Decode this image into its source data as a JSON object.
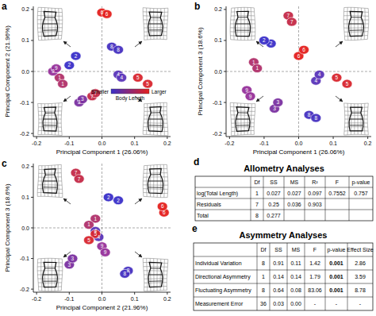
{
  "chart_data": [
    {
      "type": "scatter",
      "title": "a",
      "x_label": "Principal Component 1 (26.06%)",
      "y_label": "Principal Component 2 (21.96%)",
      "xlim": [
        -0.21,
        0.21
      ],
      "ylim": [
        -0.21,
        0.21
      ],
      "xticks": [
        -0.2,
        -0.1,
        {
          "value": 0,
          "label": "0.0"
        },
        0.1,
        0.2
      ],
      "yticks": [
        -0.2,
        -0.1,
        {
          "value": 0,
          "label": "0.0"
        },
        0.1,
        0.2
      ],
      "grid": false,
      "marker": "ellipse",
      "series": [
        {
          "x": [
            -0.13,
            -0.12,
            -0.08,
            -0.1,
            -0.07,
            -0.06,
            0.05,
            0.06,
            0.11,
            0.14,
            0.0,
            0.015,
            -0.03,
            -0.02,
            0.03,
            0.05,
            -0.15,
            -0.14
          ],
          "values": [
            -0.02,
            -0.04,
            0.05,
            0.02,
            -0.1,
            -0.09,
            -0.01,
            -0.02,
            -0.02,
            -0.04,
            0.19,
            0.185,
            -0.08,
            -0.07,
            0.08,
            0.07,
            0.0,
            0.01
          ],
          "labels": [
            "1",
            "1",
            "2",
            "2",
            "3",
            "3",
            "4",
            "4",
            "5",
            "5",
            "6",
            "6",
            "7",
            "7",
            "8",
            "8",
            "9",
            "9"
          ],
          "colors": [
            "#b0306a",
            "#b0306a",
            "#3a2fc8",
            "#3a2fc8",
            "#7a30a0",
            "#7a30a0",
            "#5a34b8",
            "#5a34b8",
            "#d8262e",
            "#d8262e",
            "#e4201e",
            "#e4201e",
            "#c42a48",
            "#c42a48",
            "#4630c0",
            "#4630c0",
            "#96309a",
            "#96309a"
          ]
        }
      ],
      "colorbar": {
        "title": "Body Length",
        "low_label": "Smaller",
        "high_label": "Larger",
        "colors": [
          "#3a2fc8",
          "#e4201e"
        ]
      }
    },
    {
      "type": "scatter",
      "title": "b",
      "x_label": "Principal Component 1 (26.06%)",
      "y_label": "Principal Component 3 (18.6%)",
      "xlim": [
        -0.21,
        0.21
      ],
      "ylim": [
        -0.21,
        0.21
      ],
      "xticks": [
        -0.2,
        -0.1,
        {
          "value": 0,
          "label": "0.0"
        },
        0.1,
        0.2
      ],
      "yticks": [
        -0.2,
        -0.1,
        {
          "value": 0,
          "label": "0.0"
        },
        0.1,
        0.2
      ],
      "grid": false,
      "marker": "ellipse",
      "series": [
        {
          "x": [
            -0.13,
            -0.12,
            -0.08,
            -0.1,
            -0.07,
            -0.06,
            0.05,
            0.06,
            0.11,
            0.14,
            0.0,
            0.015,
            -0.03,
            -0.02,
            0.03,
            0.05,
            -0.15,
            -0.14
          ],
          "values": [
            0.03,
            0.01,
            0.09,
            0.1,
            -0.12,
            -0.1,
            -0.03,
            -0.01,
            -0.02,
            -0.04,
            0.05,
            0.07,
            0.18,
            0.16,
            -0.14,
            -0.15,
            -0.06,
            -0.08
          ],
          "labels": [
            "1",
            "1",
            "2",
            "2",
            "3",
            "3",
            "4",
            "4",
            "5",
            "5",
            "6",
            "6",
            "7",
            "7",
            "8",
            "8",
            "9",
            "9"
          ],
          "colors": [
            "#b0306a",
            "#b0306a",
            "#3a2fc8",
            "#3a2fc8",
            "#7a30a0",
            "#7a30a0",
            "#5a34b8",
            "#5a34b8",
            "#d8262e",
            "#d8262e",
            "#e4201e",
            "#e4201e",
            "#c42a48",
            "#c42a48",
            "#4630c0",
            "#4630c0",
            "#96309a",
            "#96309a"
          ]
        }
      ]
    },
    {
      "type": "scatter",
      "title": "c",
      "x_label": "Principal Component 2 (21.96%)",
      "y_label": "Principal Component 3 (18.6%)",
      "xlim": [
        -0.21,
        0.21
      ],
      "ylim": [
        -0.21,
        0.21
      ],
      "xticks": [
        -0.2,
        -0.1,
        {
          "value": 0,
          "label": "0.0"
        },
        0.1,
        0.2
      ],
      "yticks": [
        -0.2,
        -0.1,
        {
          "value": 0,
          "label": "0.0"
        },
        0.1,
        0.2
      ],
      "grid": false,
      "marker": "ellipse",
      "series": [
        {
          "x": [
            -0.02,
            -0.04,
            0.05,
            0.02,
            -0.1,
            -0.09,
            -0.01,
            -0.02,
            -0.02,
            -0.04,
            0.19,
            0.185,
            -0.08,
            -0.07,
            0.08,
            0.07,
            0.0,
            0.01
          ],
          "values": [
            0.03,
            0.01,
            0.09,
            0.1,
            -0.12,
            -0.1,
            -0.03,
            -0.01,
            -0.02,
            -0.04,
            0.05,
            0.07,
            0.18,
            0.16,
            -0.14,
            -0.15,
            -0.06,
            -0.08
          ],
          "labels": [
            "1",
            "1",
            "2",
            "2",
            "3",
            "3",
            "4",
            "4",
            "5",
            "5",
            "6",
            "6",
            "7",
            "7",
            "8",
            "8",
            "9",
            "9"
          ],
          "colors": [
            "#b0306a",
            "#b0306a",
            "#3a2fc8",
            "#3a2fc8",
            "#7a30a0",
            "#7a30a0",
            "#5a34b8",
            "#5a34b8",
            "#d8262e",
            "#d8262e",
            "#e4201e",
            "#e4201e",
            "#c42a48",
            "#c42a48",
            "#4630c0",
            "#4630c0",
            "#96309a",
            "#96309a"
          ]
        }
      ]
    }
  ],
  "tables": [
    {
      "label": "d",
      "title": "Allometry Analyses",
      "header": [
        null,
        "Df",
        "SS",
        "MS",
        "R²",
        "F",
        "p-value"
      ],
      "rows": [
        [
          "log(Total Length)",
          "1",
          "0.027",
          "0.027",
          "0.097",
          "0.7552",
          "0.757"
        ],
        [
          "Residuals",
          "7",
          "0.25",
          "0.036",
          "0.903",
          null,
          null
        ],
        [
          "Total",
          "8",
          "0.277",
          null,
          null,
          null,
          null
        ]
      ]
    },
    {
      "label": "e",
      "title": "Asymmetry Analyses",
      "header": [
        null,
        "Df",
        "SS",
        "MS",
        "F",
        "p-value",
        "Effect Size"
      ],
      "rows": [
        [
          "Individual Variation",
          "8",
          "0.91",
          "0.11",
          "1.42",
          {
            "text": "0.001",
            "bold": true
          },
          "2.86"
        ],
        [
          "Directional Asymmetry",
          "1",
          "0.14",
          "0.14",
          "1.79",
          {
            "text": "0.001",
            "bold": true
          },
          "3.59"
        ],
        [
          "Fluctuating Asymmetry",
          "8",
          "0.64",
          "0.08",
          "83.06",
          {
            "text": "0.001",
            "bold": true
          },
          "8.78"
        ],
        [
          "Measurement Error",
          "36",
          "0.03",
          "0.00",
          "-",
          "-",
          "-"
        ]
      ]
    }
  ]
}
